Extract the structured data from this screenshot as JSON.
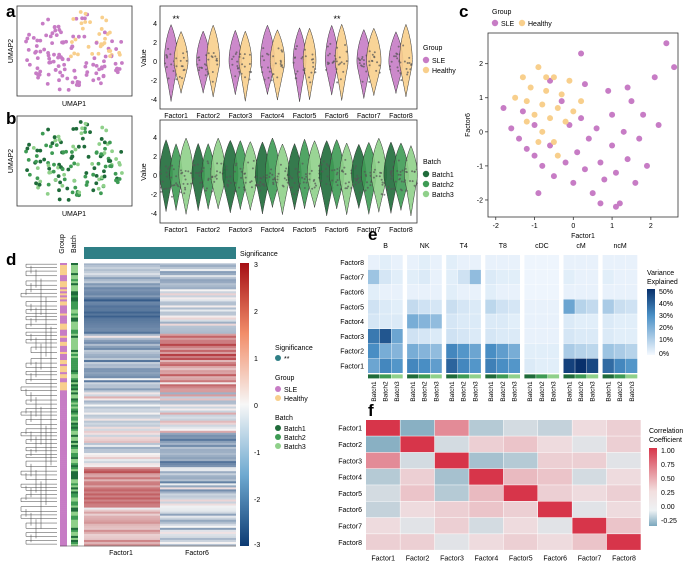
{
  "panels": {
    "a": "a",
    "b": "b",
    "c": "c",
    "d": "d",
    "e": "e",
    "f": "f"
  },
  "colors": {
    "sle": "#c77cc5",
    "healthy": "#f8cf8c",
    "batch1": "#1f6b3a",
    "batch2": "#3e9b54",
    "batch3": "#8fd08a",
    "significance": "#2f7f86"
  },
  "factors": [
    "Factor1",
    "Factor2",
    "Factor3",
    "Factor4",
    "Factor5",
    "Factor6",
    "Factor7",
    "Factor8"
  ],
  "umap": {
    "xlabel": "UMAP1",
    "ylabel": "UMAP2"
  },
  "violin": {
    "ylabel": "Value",
    "yticks": [
      "4",
      "2",
      "0",
      "-2",
      "-4"
    ],
    "sig_marks": {
      "factor1": "**",
      "factor6": "**"
    }
  },
  "legend_group": {
    "title": "Group",
    "sle": "SLE",
    "healthy": "Healthy"
  },
  "legend_batch": {
    "title": "Batch",
    "b1": "Batch1",
    "b2": "Batch2",
    "b3": "Batch3"
  },
  "chart_data": [
    {
      "id": "c",
      "type": "scatter",
      "xlabel": "Factor1",
      "ylabel": "Factor6",
      "xlim": [
        -2.2,
        2.7
      ],
      "ylim": [
        -2.5,
        2.9
      ],
      "xticks": [
        "-2",
        "-1",
        "0",
        "1",
        "2"
      ],
      "yticks": [
        "2",
        "1",
        "0",
        "-1",
        "-2"
      ],
      "legend": {
        "title": "Group",
        "items": [
          "SLE",
          "Healthy"
        ]
      },
      "series": [
        {
          "name": "SLE",
          "points": [
            [
              -1.8,
              0.7
            ],
            [
              -1.6,
              0.1
            ],
            [
              -1.4,
              -0.2
            ],
            [
              -1.3,
              0.6
            ],
            [
              -1.2,
              -0.5
            ],
            [
              -1.0,
              0.2
            ],
            [
              -1.0,
              -0.7
            ],
            [
              -0.8,
              -1.0
            ],
            [
              -0.6,
              -0.4
            ],
            [
              -0.5,
              -1.3
            ],
            [
              -0.3,
              0.9
            ],
            [
              -0.2,
              -0.9
            ],
            [
              -0.1,
              0.2
            ],
            [
              0.0,
              -1.5
            ],
            [
              0.1,
              -0.6
            ],
            [
              0.2,
              0.4
            ],
            [
              0.3,
              -1.1
            ],
            [
              0.4,
              -0.2
            ],
            [
              0.5,
              -1.8
            ],
            [
              0.6,
              0.1
            ],
            [
              0.7,
              -0.9
            ],
            [
              0.8,
              -1.4
            ],
            [
              0.9,
              1.2
            ],
            [
              1.0,
              0.5
            ],
            [
              1.0,
              -0.4
            ],
            [
              1.1,
              -1.2
            ],
            [
              1.2,
              -2.1
            ],
            [
              1.3,
              0.0
            ],
            [
              1.4,
              -0.8
            ],
            [
              1.5,
              0.9
            ],
            [
              1.6,
              -1.5
            ],
            [
              1.7,
              -0.2
            ],
            [
              1.8,
              0.5
            ],
            [
              1.9,
              -1.0
            ],
            [
              2.1,
              1.6
            ],
            [
              2.2,
              0.2
            ],
            [
              2.4,
              2.6
            ],
            [
              2.6,
              1.9
            ],
            [
              0.2,
              2.3
            ],
            [
              -0.6,
              1.5
            ],
            [
              1.1,
              -2.2
            ],
            [
              0.7,
              -2.1
            ],
            [
              -0.9,
              -1.8
            ],
            [
              0.3,
              1.4
            ],
            [
              1.4,
              1.3
            ]
          ]
        },
        {
          "name": "Healthy",
          "points": [
            [
              -1.5,
              1.0
            ],
            [
              -1.3,
              1.6
            ],
            [
              -1.2,
              0.9
            ],
            [
              -1.1,
              1.3
            ],
            [
              -1.0,
              0.5
            ],
            [
              -0.9,
              1.9
            ],
            [
              -0.8,
              0.8
            ],
            [
              -0.8,
              0.0
            ],
            [
              -0.7,
              1.2
            ],
            [
              -0.6,
              0.4
            ],
            [
              -0.5,
              1.6
            ],
            [
              -0.5,
              -0.3
            ],
            [
              -0.4,
              0.7
            ],
            [
              -0.3,
              1.1
            ],
            [
              -0.2,
              0.3
            ],
            [
              -0.1,
              1.5
            ],
            [
              0.0,
              0.6
            ],
            [
              -0.9,
              -0.3
            ],
            [
              -1.2,
              0.3
            ],
            [
              -0.4,
              -0.7
            ],
            [
              0.2,
              0.9
            ],
            [
              -0.7,
              1.6
            ]
          ]
        }
      ]
    },
    {
      "id": "e",
      "type": "heatmap",
      "cell_types": [
        "B",
        "NK",
        "T4",
        "T8",
        "cDC",
        "cM",
        "ncM"
      ],
      "batches": [
        "Batch1",
        "Batch2",
        "Batch3"
      ],
      "rows": [
        "Factor8",
        "Factor7",
        "Factor6",
        "Factor5",
        "Factor4",
        "Factor3",
        "Factor2",
        "Factor1"
      ],
      "colorbar": {
        "title": "Variance Explained",
        "labels": [
          "50%",
          "40%",
          "30%",
          "20%",
          "10%",
          "0%"
        ]
      },
      "values": [
        [
          2,
          3,
          2,
          2,
          3,
          2,
          3,
          2,
          2,
          2,
          2,
          2,
          1,
          1,
          1,
          2,
          2,
          2,
          2,
          2,
          2
        ],
        [
          14,
          5,
          3,
          3,
          4,
          2,
          3,
          6,
          16,
          4,
          3,
          3,
          1,
          1,
          1,
          3,
          2,
          2,
          3,
          2,
          2
        ],
        [
          3,
          2,
          2,
          2,
          2,
          2,
          3,
          2,
          2,
          3,
          2,
          2,
          1,
          1,
          1,
          2,
          2,
          2,
          2,
          2,
          2
        ],
        [
          6,
          4,
          3,
          8,
          6,
          5,
          7,
          5,
          4,
          9,
          6,
          5,
          2,
          2,
          2,
          22,
          10,
          8,
          12,
          7,
          6
        ],
        [
          5,
          4,
          4,
          20,
          18,
          16,
          5,
          4,
          4,
          4,
          4,
          3,
          2,
          2,
          2,
          4,
          3,
          3,
          4,
          3,
          3
        ],
        [
          34,
          44,
          22,
          6,
          5,
          4,
          6,
          5,
          4,
          5,
          4,
          4,
          2,
          2,
          2,
          5,
          4,
          4,
          4,
          3,
          3
        ],
        [
          28,
          20,
          18,
          20,
          18,
          16,
          30,
          26,
          22,
          28,
          24,
          20,
          3,
          3,
          3,
          12,
          10,
          9,
          14,
          12,
          10
        ],
        [
          22,
          30,
          26,
          30,
          28,
          24,
          40,
          30,
          26,
          32,
          28,
          26,
          4,
          3,
          3,
          50,
          55,
          48,
          38,
          30,
          26
        ]
      ]
    },
    {
      "id": "f",
      "type": "heatmap",
      "rows": [
        "Factor1",
        "Factor2",
        "Factor3",
        "Factor4",
        "Factor5",
        "Factor6",
        "Factor7",
        "Factor8"
      ],
      "cols": [
        "Factor1",
        "Factor2",
        "Factor3",
        "Factor4",
        "Factor5",
        "Factor6",
        "Factor7",
        "Factor8"
      ],
      "colorbar": {
        "title": "Correlation Coefficient",
        "labels": [
          "1.00",
          "0.75",
          "0.50",
          "0.25",
          "0.00",
          "-0.25"
        ]
      },
      "values": [
        [
          1.0,
          -0.35,
          0.45,
          -0.2,
          -0.1,
          -0.15,
          0.05,
          0.1
        ],
        [
          -0.35,
          1.0,
          -0.1,
          0.1,
          0.15,
          0.05,
          -0.05,
          0.1
        ],
        [
          0.45,
          -0.1,
          1.0,
          -0.25,
          -0.2,
          0.1,
          0.1,
          -0.05
        ],
        [
          -0.2,
          0.1,
          -0.25,
          1.0,
          0.2,
          0.15,
          -0.1,
          0.05
        ],
        [
          -0.1,
          0.15,
          -0.2,
          0.2,
          1.0,
          0.1,
          0.05,
          0.1
        ],
        [
          -0.15,
          0.05,
          0.1,
          0.15,
          0.1,
          1.0,
          -0.05,
          0.05
        ],
        [
          0.05,
          -0.05,
          0.1,
          -0.1,
          0.05,
          -0.05,
          1.0,
          0.15
        ],
        [
          0.1,
          0.1,
          -0.05,
          0.05,
          0.1,
          0.05,
          0.15,
          1.0
        ]
      ]
    },
    {
      "id": "d",
      "type": "heatmap",
      "columns": [
        "Factor1",
        "Factor6"
      ],
      "annotations": [
        "Group",
        "Batch"
      ],
      "top_bar": "Significance",
      "colorbar": {
        "labels": [
          "3",
          "2",
          "1",
          "0",
          "-1",
          "-2",
          "-3"
        ]
      },
      "legend": {
        "significance_title": "Significance",
        "significance_item": "**",
        "group_title": "Group",
        "group_items": [
          "SLE",
          "Healthy"
        ],
        "batch_title": "Batch",
        "batch_items": [
          "Batch1",
          "Batch2",
          "Batch3"
        ]
      }
    }
  ]
}
